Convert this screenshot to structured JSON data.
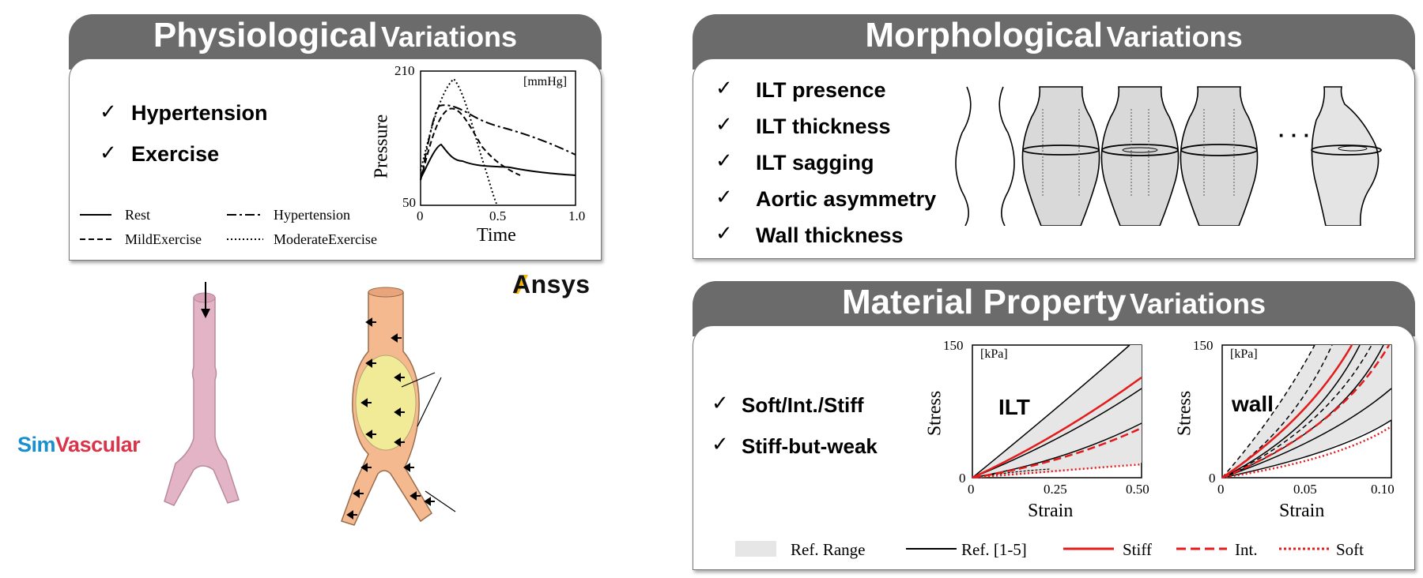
{
  "physiological": {
    "title_big": "Physiological",
    "title_small": "Variations",
    "items": [
      "Hypertension",
      "Exercise"
    ],
    "legend": [
      "Rest",
      "Hypertension",
      "MildExercise",
      "ModerateExercise"
    ],
    "chart": {
      "y_top": "210",
      "y_bottom": "50",
      "unit": "[mmHg]",
      "ylabel": "Pressure",
      "xlabel": "Time",
      "x_ticks": [
        "0",
        "0.5",
        "1.0"
      ]
    }
  },
  "morphological": {
    "title_big": "Morphological",
    "title_small": "Variations",
    "items": [
      "ILT presence",
      "ILT thickness",
      "ILT sagging",
      "Aortic asymmetry",
      "Wall thickness"
    ],
    "ellipsis": "· · ·"
  },
  "material": {
    "title_big": "Material Property",
    "title_small": "Variations",
    "items": [
      "Soft/Int./Stiff",
      "Stiff-but-weak"
    ],
    "ilt_chart": {
      "label": "ILT",
      "unit": "[kPa]",
      "y_top": "150",
      "y_bottom": "0",
      "ylabel": "Stress",
      "xlabel": "Strain",
      "x_ticks": [
        "0",
        "0.25",
        "0.50"
      ]
    },
    "wall_chart": {
      "label": "wall",
      "unit": "[kPa]",
      "y_top": "150",
      "y_bottom": "0",
      "ylabel": "Stress",
      "xlabel": "Strain",
      "x_ticks": [
        "0",
        "0.05",
        "0.10"
      ]
    },
    "legend": [
      "Ref. Range",
      "Ref. [1-5]",
      "Stiff",
      "Int.",
      "Soft"
    ]
  },
  "logos": {
    "ansys": "Ansys",
    "sim": "Sim",
    "vascular": "Vascular"
  },
  "colors": {
    "header": "#6b6b6b",
    "red": "#e31b1b",
    "pink": "#e3b4c6",
    "orange": "#f4b98f",
    "yellow": "#f1f19a"
  },
  "check_mark": "✓"
}
